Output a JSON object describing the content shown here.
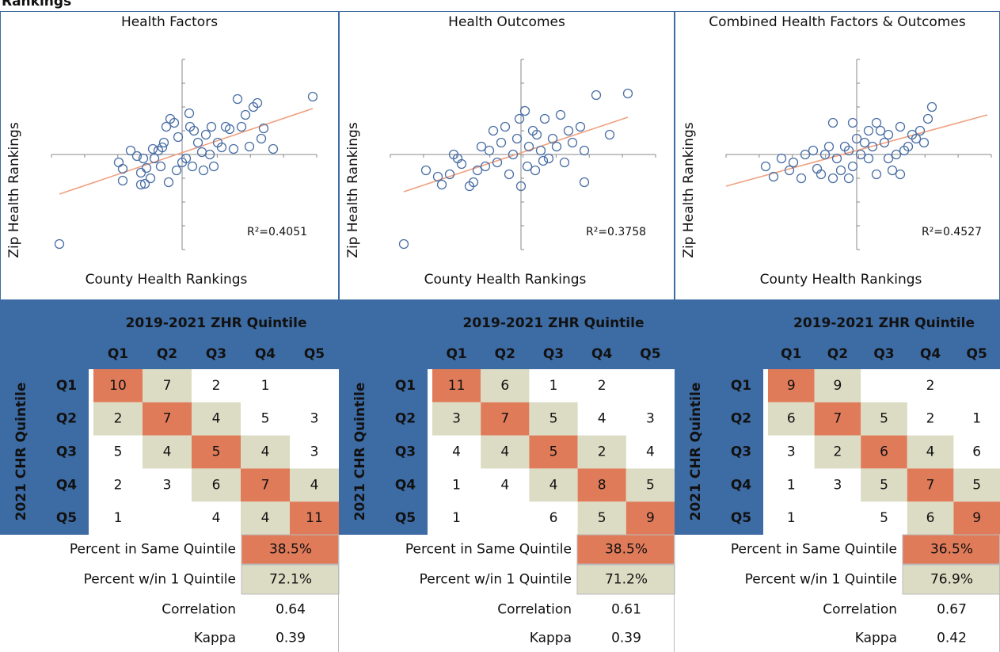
{
  "page_title": "Rankings",
  "panels": [
    {
      "title": "Health Factors",
      "y_axis_label": "Zip Health Rankings",
      "x_axis_label": "County Health Rankings",
      "r_squared": "R²=0.4051",
      "scatter": {
        "type": "scatter",
        "color": "#4a6fa5",
        "xlim": [
          -165,
          170
        ],
        "ylim": [
          -120,
          120
        ],
        "x": [
          -155,
          165,
          -80,
          -75,
          -75,
          -57,
          -52,
          -47,
          -40,
          -52,
          -45,
          -35,
          -30,
          -25,
          -23,
          -20,
          -15,
          -10,
          -5,
          0,
          5,
          9,
          10,
          15,
          20,
          25,
          30,
          35,
          40,
          45,
          50,
          55,
          60,
          65,
          70,
          75,
          80,
          85,
          90,
          95,
          100,
          103,
          115,
          -17,
          -7,
          -27,
          -37,
          -49,
          -65,
          13,
          27,
          37
        ],
        "y": [
          -113,
          73,
          -10,
          -18,
          -33,
          -2,
          -38,
          -37,
          -30,
          -23,
          -17,
          -5,
          5,
          9,
          15,
          35,
          45,
          40,
          22,
          -10,
          -5,
          52,
          35,
          30,
          15,
          3,
          25,
          0,
          -15,
          15,
          9,
          35,
          32,
          7,
          70,
          35,
          50,
          10,
          60,
          65,
          20,
          33,
          7,
          -35,
          -20,
          -15,
          7,
          -5,
          5,
          -15,
          -20,
          35
        ],
        "trendline": {
          "color": "#f0a080",
          "x": [
            -155,
            165
          ],
          "y": [
            -50,
            58
          ]
        }
      },
      "table": {
        "title": "2019-2021 ZHR Quintile",
        "row_axis_label": "2021 CHR Quintile",
        "column_headers": [
          "Q1",
          "Q2",
          "Q3",
          "Q4",
          "Q5"
        ],
        "row_headers": [
          "Q1",
          "Q2",
          "Q3",
          "Q4",
          "Q5"
        ],
        "rows": [
          [
            10,
            7,
            2,
            1,
            null
          ],
          [
            2,
            7,
            4,
            5,
            3
          ],
          [
            5,
            4,
            5,
            4,
            3
          ],
          [
            2,
            3,
            6,
            7,
            4
          ],
          [
            1,
            null,
            4,
            4,
            11
          ]
        ],
        "stats": [
          {
            "label": "Percent in Same Quintile",
            "value": "38.5%"
          },
          {
            "label": "Percent w/in 1 Quintile",
            "value": "72.1%"
          },
          {
            "label": "Correlation",
            "value": "0.64"
          },
          {
            "label": "Kappa",
            "value": "0.39"
          }
        ]
      }
    },
    {
      "title": "Health Outcomes",
      "y_axis_label": "Zip Health Rankings",
      "x_axis_label": "County Health Rankings",
      "r_squared": "R²=0.3758",
      "scatter": {
        "type": "scatter",
        "color": "#4a6fa5",
        "xlim": [
          -165,
          170
        ],
        "ylim": [
          -120,
          120
        ],
        "x": [
          -148,
          135,
          -120,
          -105,
          -100,
          -90,
          -80,
          -75,
          -60,
          -55,
          -45,
          -40,
          -30,
          -25,
          -20,
          -15,
          -10,
          -5,
          0,
          5,
          10,
          15,
          20,
          25,
          30,
          35,
          40,
          45,
          50,
          55,
          60,
          65,
          75,
          80,
          80,
          95,
          112,
          -65,
          -35,
          -2,
          8,
          18,
          28,
          -85,
          -50
        ],
        "y": [
          -113,
          77,
          -20,
          -28,
          -38,
          -25,
          -5,
          -12,
          -35,
          -20,
          -15,
          5,
          -10,
          15,
          35,
          -25,
          0,
          20,
          -40,
          55,
          10,
          30,
          25,
          5,
          45,
          -5,
          20,
          10,
          50,
          -10,
          30,
          15,
          35,
          5,
          -35,
          75,
          25,
          -40,
          30,
          45,
          -15,
          -20,
          -8,
          0,
          10
        ],
        "trendline": {
          "color": "#f0a080",
          "x": [
            -148,
            135
          ],
          "y": [
            -47,
            47
          ]
        }
      },
      "table": {
        "title": "2019-2021 ZHR Quintile",
        "row_axis_label": "2021 CHR Quintile",
        "column_headers": [
          "Q1",
          "Q2",
          "Q3",
          "Q4",
          "Q5"
        ],
        "row_headers": [
          "Q1",
          "Q2",
          "Q3",
          "Q4",
          "Q5"
        ],
        "rows": [
          [
            11,
            6,
            1,
            2,
            null
          ],
          [
            3,
            7,
            5,
            4,
            3
          ],
          [
            4,
            4,
            5,
            2,
            4
          ],
          [
            1,
            4,
            4,
            8,
            5
          ],
          [
            1,
            null,
            6,
            5,
            9
          ]
        ],
        "stats": [
          {
            "label": "Percent in Same Quintile",
            "value": "38.5%"
          },
          {
            "label": "Percent w/in 1 Quintile",
            "value": "71.2%"
          },
          {
            "label": "Correlation",
            "value": "0.61"
          },
          {
            "label": "Kappa",
            "value": "0.39"
          }
        ]
      }
    },
    {
      "title": "Combined Health Factors & Outcomes",
      "y_axis_label": "Zip Health Rankings",
      "x_axis_label": "County Health Rankings",
      "r_squared": "R²=0.4527",
      "scatter": {
        "type": "scatter",
        "color": "#4a6fa5",
        "xlim": [
          -165,
          170
        ],
        "ylim": [
          -120,
          120
        ],
        "x": [
          -115,
          -105,
          -95,
          -85,
          -80,
          -70,
          -65,
          -55,
          -50,
          -45,
          -40,
          -35,
          -30,
          -25,
          -20,
          -15,
          -10,
          -5,
          0,
          5,
          10,
          15,
          20,
          25,
          25,
          30,
          35,
          40,
          45,
          50,
          55,
          60,
          65,
          70,
          75,
          80,
          85,
          90,
          -30,
          -5,
          15,
          55,
          95,
          -10,
          40
        ],
        "y": [
          -15,
          -28,
          -5,
          -20,
          -10,
          -30,
          0,
          5,
          -18,
          -25,
          0,
          10,
          -30,
          -5,
          -20,
          10,
          5,
          -15,
          20,
          0,
          15,
          -5,
          10,
          -25,
          40,
          30,
          15,
          25,
          -20,
          0,
          35,
          5,
          10,
          25,
          20,
          30,
          15,
          45,
          40,
          40,
          30,
          -25,
          60,
          -30,
          -5
        ],
        "trendline": {
          "color": "#f0a080",
          "x": [
            -165,
            165
          ],
          "y": [
            -40,
            50
          ]
        }
      },
      "table": {
        "title": "2019-2021 ZHR Quintile",
        "row_axis_label": "2021 CHR Quintile",
        "column_headers": [
          "Q1",
          "Q2",
          "Q3",
          "Q4",
          "Q5"
        ],
        "row_headers": [
          "Q1",
          "Q2",
          "Q3",
          "Q4",
          "Q5"
        ],
        "rows": [
          [
            9,
            9,
            null,
            2,
            null
          ],
          [
            6,
            7,
            5,
            2,
            1
          ],
          [
            3,
            2,
            6,
            4,
            6
          ],
          [
            1,
            3,
            5,
            7,
            5
          ],
          [
            1,
            null,
            5,
            6,
            9
          ]
        ],
        "stats": [
          {
            "label": "Percent in Same Quintile",
            "value": "36.5%"
          },
          {
            "label": "Percent w/in 1 Quintile",
            "value": "76.9%"
          },
          {
            "label": "Correlation",
            "value": "0.67"
          },
          {
            "label": "Kappa",
            "value": "0.42"
          }
        ]
      }
    }
  ]
}
